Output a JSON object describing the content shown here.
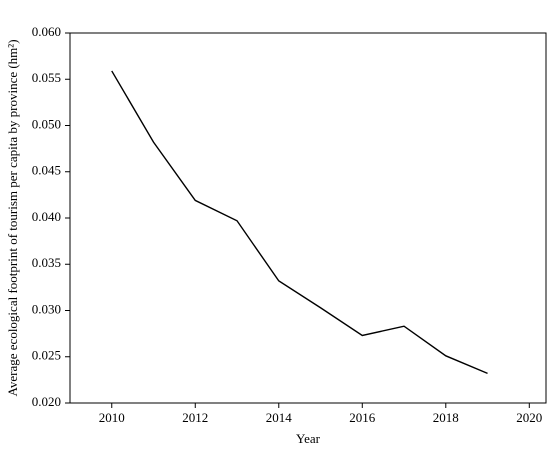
{
  "chart_data": {
    "type": "line",
    "x_label": "Year",
    "y_label": "Average ecological footprint of tourism per capita by province (hm²)",
    "x": [
      2010,
      2011,
      2012,
      2013,
      2014,
      2015,
      2016,
      2017,
      2018,
      2019
    ],
    "series": [
      {
        "color": "#000000",
        "values": [
          0.0559,
          0.0482,
          0.0419,
          0.0397,
          0.0332,
          0.0303,
          0.0273,
          0.0283,
          0.0251,
          0.0232
        ]
      }
    ],
    "xlim": [
      2009,
      2020.4
    ],
    "xticks": [
      2010,
      2012,
      2014,
      2016,
      2018,
      2020
    ],
    "ylim": [
      0.02,
      0.06
    ],
    "yticks": [
      {
        "value": 0.02,
        "label": "0.020"
      },
      {
        "value": 0.025,
        "label": "0.025"
      },
      {
        "value": 0.03,
        "label": "0.030"
      },
      {
        "value": 0.035,
        "label": "0.035"
      },
      {
        "value": 0.04,
        "label": "0.040"
      },
      {
        "value": 0.045,
        "label": "0.045"
      },
      {
        "value": 0.05,
        "label": "0.050"
      },
      {
        "value": 0.055,
        "label": "0.055"
      },
      {
        "value": 0.06,
        "label": "0.060"
      }
    ],
    "grid": false
  }
}
